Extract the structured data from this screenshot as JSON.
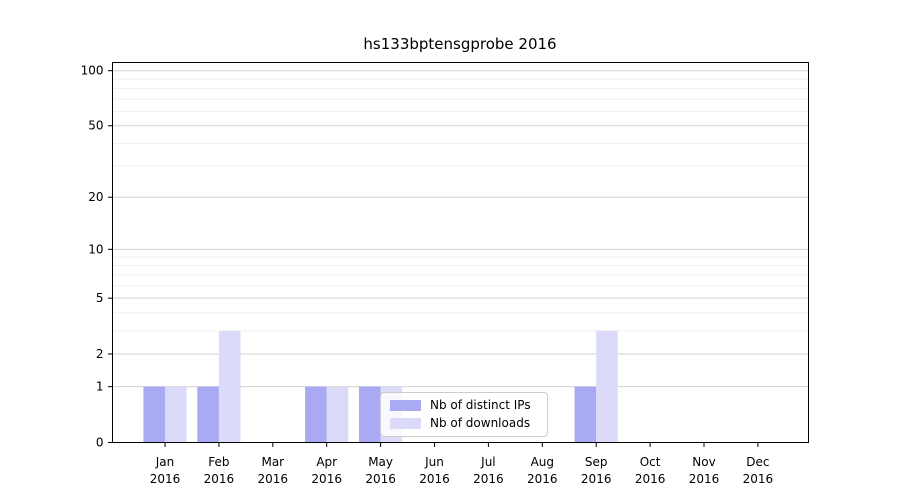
{
  "chart_data": {
    "type": "bar",
    "title": "hs133bptensgprobe 2016",
    "categories": [
      "Jan",
      "Feb",
      "Mar",
      "Apr",
      "May",
      "Jun",
      "Jul",
      "Aug",
      "Sep",
      "Oct",
      "Nov",
      "Dec"
    ],
    "year_label": "2016",
    "series": [
      {
        "name": "Nb of distinct IPs",
        "slug": "distinct-ips",
        "color": "#a9a9f4",
        "values": [
          1,
          1,
          0,
          1,
          1,
          0,
          0,
          0,
          1,
          0,
          0,
          0
        ]
      },
      {
        "name": "Nb of downloads",
        "slug": "downloads",
        "color": "#dbdbf9",
        "values": [
          1,
          3,
          0,
          1,
          1,
          0,
          0,
          0,
          3,
          0,
          0,
          0
        ]
      }
    ],
    "y_axis": {
      "scale": "log10(value+1)",
      "major_ticks": [
        0,
        1,
        2,
        5,
        10,
        20,
        50,
        100
      ],
      "minor_ticks": [
        3,
        4,
        6,
        7,
        8,
        9,
        30,
        40,
        60,
        70,
        80,
        90
      ],
      "ylim": [
        0,
        112
      ]
    },
    "x_axis": {
      "tick_label_line1": [
        "Jan",
        "Feb",
        "Mar",
        "Apr",
        "May",
        "Jun",
        "Jul",
        "Aug",
        "Sep",
        "Oct",
        "Nov",
        "Dec"
      ],
      "tick_label_line2": "2016"
    },
    "legend": {
      "position": "lower center",
      "frame_alpha": 0.8
    },
    "grid": {
      "enabled": true,
      "major_color": "#d2d2d2",
      "minor_color": "#efefef"
    },
    "colors": {
      "spine": "#000000",
      "text": "#000000",
      "background": "#ffffff"
    }
  }
}
